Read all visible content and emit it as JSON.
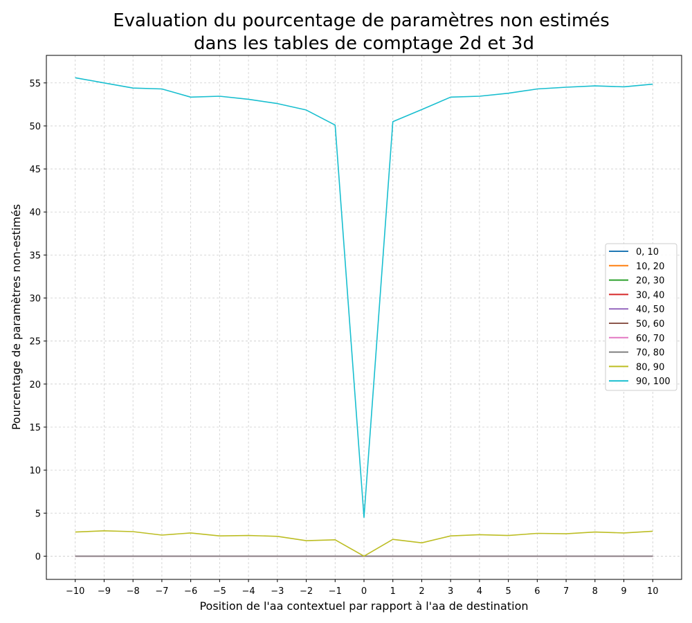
{
  "chart_data": {
    "type": "line",
    "title_lines": [
      "Evaluation du pourcentage de paramètres non estimés",
      "dans les tables de comptage 2d et 3d"
    ],
    "xlabel": "Position de l'aa contextuel par rapport à l'aa de destination",
    "ylabel": "Pourcentage de paramètres non-estimés",
    "xlim": [
      -11,
      11
    ],
    "ylim": [
      -2.7,
      58.2
    ],
    "x": [
      -10,
      -9,
      -8,
      -7,
      -6,
      -5,
      -4,
      -3,
      -2,
      -1,
      0,
      1,
      2,
      3,
      4,
      5,
      6,
      7,
      8,
      9,
      10
    ],
    "x_tick_labels": [
      "−10",
      "−9",
      "−8",
      "−7",
      "−6",
      "−5",
      "−4",
      "−3",
      "−2",
      "−1",
      "0",
      "1",
      "2",
      "3",
      "4",
      "5",
      "6",
      "7",
      "8",
      "9",
      "10"
    ],
    "y_ticks": [
      0,
      5,
      10,
      15,
      20,
      25,
      30,
      35,
      40,
      45,
      50,
      55
    ],
    "y_tick_labels": [
      "0",
      "5",
      "10",
      "15",
      "20",
      "25",
      "30",
      "35",
      "40",
      "45",
      "50",
      "55"
    ],
    "grid": true,
    "legend_position": "center-right",
    "series": [
      {
        "name": "0, 10",
        "color": "#1f77b4",
        "values": [
          0,
          0,
          0,
          0,
          0,
          0,
          0,
          0,
          0,
          0,
          0,
          0,
          0,
          0,
          0,
          0,
          0,
          0,
          0,
          0,
          0
        ]
      },
      {
        "name": "10, 20",
        "color": "#ff7f0e",
        "values": [
          0,
          0,
          0,
          0,
          0,
          0,
          0,
          0,
          0,
          0,
          0,
          0,
          0,
          0,
          0,
          0,
          0,
          0,
          0,
          0,
          0
        ]
      },
      {
        "name": "20, 30",
        "color": "#2ca02c",
        "values": [
          0,
          0,
          0,
          0,
          0,
          0,
          0,
          0,
          0,
          0,
          0,
          0,
          0,
          0,
          0,
          0,
          0,
          0,
          0,
          0,
          0
        ]
      },
      {
        "name": "30, 40",
        "color": "#d62728",
        "values": [
          0,
          0,
          0,
          0,
          0,
          0,
          0,
          0,
          0,
          0,
          0,
          0,
          0,
          0,
          0,
          0,
          0,
          0,
          0,
          0,
          0
        ]
      },
      {
        "name": "40, 50",
        "color": "#9467bd",
        "values": [
          0,
          0,
          0,
          0,
          0,
          0,
          0,
          0,
          0,
          0,
          0,
          0,
          0,
          0,
          0,
          0,
          0,
          0,
          0,
          0,
          0
        ]
      },
      {
        "name": "50, 60",
        "color": "#8c564b",
        "values": [
          0,
          0,
          0,
          0,
          0,
          0,
          0,
          0,
          0,
          0,
          0,
          0,
          0,
          0,
          0,
          0,
          0,
          0,
          0,
          0,
          0
        ]
      },
      {
        "name": "60, 70",
        "color": "#e377c2",
        "values": [
          0,
          0,
          0,
          0,
          0,
          0,
          0,
          0,
          0,
          0,
          0,
          0,
          0,
          0,
          0,
          0,
          0,
          0,
          0,
          0,
          0
        ]
      },
      {
        "name": "70, 80",
        "color": "#7f7f7f",
        "values": [
          0,
          0,
          0,
          0,
          0,
          0,
          0,
          0,
          0,
          0,
          0,
          0,
          0,
          0,
          0,
          0,
          0,
          0,
          0,
          0,
          0
        ]
      },
      {
        "name": "80, 90",
        "color": "#bcbd22",
        "values": [
          2.8,
          2.95,
          2.85,
          2.45,
          2.7,
          2.35,
          2.4,
          2.3,
          1.8,
          1.9,
          0,
          1.95,
          1.55,
          2.35,
          2.5,
          2.4,
          2.65,
          2.6,
          2.8,
          2.7,
          2.9
        ]
      },
      {
        "name": "90, 100",
        "color": "#17becf",
        "values": [
          55.6,
          55.0,
          54.4,
          54.3,
          53.35,
          53.45,
          53.1,
          52.6,
          51.85,
          50.1,
          4.5,
          50.5,
          51.9,
          53.35,
          53.45,
          53.8,
          54.3,
          54.5,
          54.65,
          54.55,
          54.85
        ]
      }
    ]
  }
}
